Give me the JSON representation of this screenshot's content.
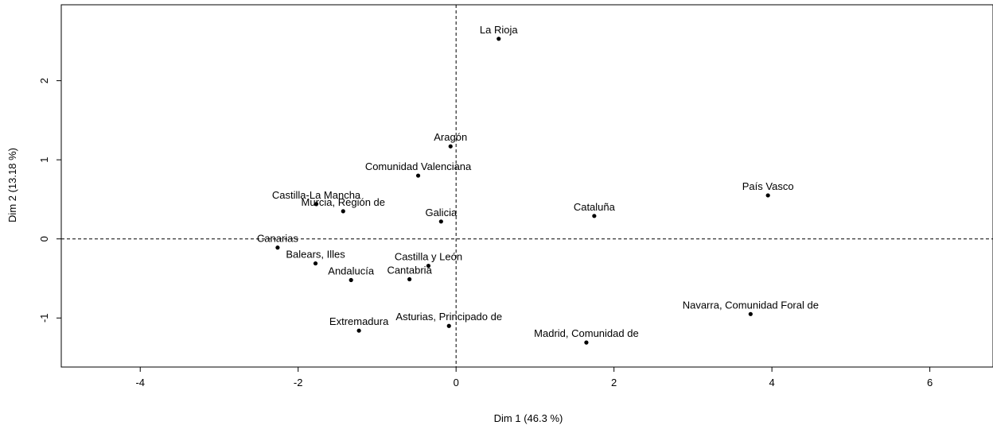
{
  "chart_data": {
    "type": "scatter",
    "title": "",
    "xlabel": "Dim 1 (46.3 %)",
    "ylabel": "Dim 2 (13.18 %)",
    "xlim": [
      -5,
      6.8
    ],
    "ylim": [
      -1.62,
      2.96
    ],
    "xticks": [
      -4,
      -2,
      0,
      2,
      4,
      6
    ],
    "yticks": [
      -1,
      0,
      1,
      2
    ],
    "xtick_labels": [
      "-4",
      "-2",
      "0",
      "2",
      "4",
      "6"
    ],
    "ytick_labels": [
      "-1",
      "0",
      "1",
      "2"
    ],
    "reference_lines": {
      "x": 0,
      "y": 0,
      "style": "dashed"
    },
    "point_color": "#000000",
    "points": [
      {
        "label": "La Rioja",
        "x": 0.54,
        "y": 2.53
      },
      {
        "label": "Aragón",
        "x": -0.07,
        "y": 1.17
      },
      {
        "label": "Comunidad Valenciana",
        "x": -0.48,
        "y": 0.8
      },
      {
        "label": "Castilla-La Mancha",
        "x": -1.77,
        "y": 0.44
      },
      {
        "label": "Murcia, Región de",
        "x": -1.43,
        "y": 0.35
      },
      {
        "label": "Galicia",
        "x": -0.19,
        "y": 0.22
      },
      {
        "label": "Cataluña",
        "x": 1.75,
        "y": 0.29
      },
      {
        "label": "País Vasco",
        "x": 3.95,
        "y": 0.55
      },
      {
        "label": "Canarias",
        "x": -2.26,
        "y": -0.11
      },
      {
        "label": "Balears, Illes",
        "x": -1.78,
        "y": -0.31
      },
      {
        "label": "Castilla y León",
        "x": -0.35,
        "y": -0.34
      },
      {
        "label": "Andalucía",
        "x": -1.33,
        "y": -0.52
      },
      {
        "label": "Cantabria",
        "x": -0.59,
        "y": -0.51
      },
      {
        "label": "Navarra, Comunidad Foral de",
        "x": 3.73,
        "y": -0.95
      },
      {
        "label": "Extremadura",
        "x": -1.23,
        "y": -1.16
      },
      {
        "label": "Asturias, Principado de",
        "x": -0.09,
        "y": -1.1
      },
      {
        "label": "Madrid, Comunidad de",
        "x": 1.65,
        "y": -1.31
      }
    ]
  }
}
